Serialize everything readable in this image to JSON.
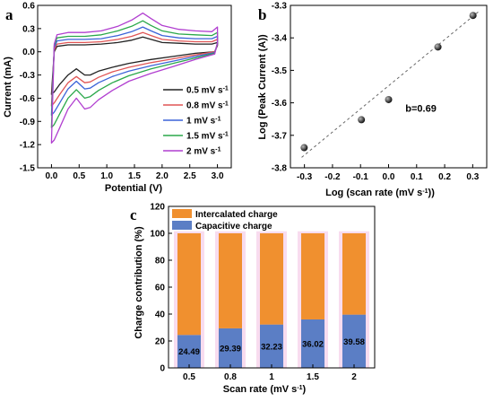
{
  "colors": {
    "cv_series": [
      "#222222",
      "#e05555",
      "#3b63d8",
      "#2aa84a",
      "#b13fd0"
    ],
    "capacitive": "#5b7ec5",
    "intercalated": "#f0902f",
    "highlight": "#f8dcef",
    "marker": "#111111",
    "fit_line": "#666666"
  },
  "chart_data": [
    {
      "panel_label": "a",
      "type": "line",
      "xlabel": "Potential (V)",
      "ylabel": "Current (mA)",
      "xlim": [
        -0.25,
        3.25
      ],
      "ylim": [
        -1.5,
        0.6
      ],
      "xticks": [
        "0.0",
        "0.5",
        "1.0",
        "1.5",
        "2.0",
        "2.5",
        "3.0"
      ],
      "yticks": [
        "-1.5",
        "-1.2",
        "-0.9",
        "-0.6",
        "-0.3",
        "0.0",
        "0.3",
        "0.6"
      ],
      "legend_position": "lower-right",
      "series": [
        {
          "name": "0.5 mV s",
          "unit_exp": "-1",
          "anodic": [
            [
              0.0,
              -0.55
            ],
            [
              0.05,
              0.0
            ],
            [
              0.1,
              0.07
            ],
            [
              0.3,
              0.09
            ],
            [
              0.6,
              0.09
            ],
            [
              0.9,
              0.1
            ],
            [
              1.2,
              0.12
            ],
            [
              1.45,
              0.15
            ],
            [
              1.65,
              0.19
            ],
            [
              1.8,
              0.16
            ],
            [
              2.0,
              0.12
            ],
            [
              2.3,
              0.11
            ],
            [
              2.6,
              0.1
            ],
            [
              2.9,
              0.1
            ],
            [
              3.0,
              0.12
            ]
          ],
          "cathodic": [
            [
              3.0,
              0.08
            ],
            [
              2.95,
              0.0
            ],
            [
              2.6,
              -0.02
            ],
            [
              2.2,
              -0.06
            ],
            [
              1.8,
              -0.1
            ],
            [
              1.4,
              -0.15
            ],
            [
              1.1,
              -0.2
            ],
            [
              0.85,
              -0.25
            ],
            [
              0.7,
              -0.3
            ],
            [
              0.6,
              -0.3
            ],
            [
              0.45,
              -0.22
            ],
            [
              0.3,
              -0.3
            ],
            [
              0.15,
              -0.42
            ],
            [
              0.05,
              -0.52
            ],
            [
              0.0,
              -0.55
            ]
          ]
        },
        {
          "name": "0.8 mV s",
          "unit_exp": "-1",
          "anodic": [
            [
              0.0,
              -0.7
            ],
            [
              0.05,
              0.02
            ],
            [
              0.1,
              0.1
            ],
            [
              0.3,
              0.12
            ],
            [
              0.6,
              0.12
            ],
            [
              0.9,
              0.13
            ],
            [
              1.2,
              0.16
            ],
            [
              1.45,
              0.2
            ],
            [
              1.65,
              0.25
            ],
            [
              1.8,
              0.21
            ],
            [
              2.0,
              0.16
            ],
            [
              2.3,
              0.14
            ],
            [
              2.6,
              0.13
            ],
            [
              2.9,
              0.13
            ],
            [
              3.0,
              0.16
            ]
          ],
          "cathodic": [
            [
              3.0,
              0.09
            ],
            [
              2.95,
              0.0
            ],
            [
              2.6,
              -0.04
            ],
            [
              2.2,
              -0.09
            ],
            [
              1.8,
              -0.14
            ],
            [
              1.4,
              -0.2
            ],
            [
              1.1,
              -0.26
            ],
            [
              0.85,
              -0.33
            ],
            [
              0.7,
              -0.39
            ],
            [
              0.6,
              -0.4
            ],
            [
              0.45,
              -0.32
            ],
            [
              0.3,
              -0.4
            ],
            [
              0.15,
              -0.55
            ],
            [
              0.05,
              -0.66
            ],
            [
              0.0,
              -0.7
            ]
          ]
        },
        {
          "name": "1 mV s",
          "unit_exp": "-1",
          "anodic": [
            [
              0.0,
              -0.82
            ],
            [
              0.05,
              0.05
            ],
            [
              0.1,
              0.14
            ],
            [
              0.3,
              0.16
            ],
            [
              0.6,
              0.16
            ],
            [
              0.9,
              0.17
            ],
            [
              1.2,
              0.21
            ],
            [
              1.45,
              0.26
            ],
            [
              1.65,
              0.32
            ],
            [
              1.8,
              0.27
            ],
            [
              2.0,
              0.21
            ],
            [
              2.3,
              0.18
            ],
            [
              2.6,
              0.17
            ],
            [
              2.9,
              0.17
            ],
            [
              3.0,
              0.2
            ]
          ],
          "cathodic": [
            [
              3.0,
              0.1
            ],
            [
              2.95,
              -0.01
            ],
            [
              2.6,
              -0.06
            ],
            [
              2.2,
              -0.12
            ],
            [
              1.8,
              -0.18
            ],
            [
              1.4,
              -0.25
            ],
            [
              1.1,
              -0.32
            ],
            [
              0.85,
              -0.4
            ],
            [
              0.7,
              -0.47
            ],
            [
              0.6,
              -0.48
            ],
            [
              0.45,
              -0.38
            ],
            [
              0.3,
              -0.48
            ],
            [
              0.15,
              -0.66
            ],
            [
              0.05,
              -0.78
            ],
            [
              0.0,
              -0.82
            ]
          ]
        },
        {
          "name": "1.5 mV s",
          "unit_exp": "-1",
          "anodic": [
            [
              0.0,
              -0.98
            ],
            [
              0.05,
              0.08
            ],
            [
              0.1,
              0.18
            ],
            [
              0.3,
              0.2
            ],
            [
              0.6,
              0.2
            ],
            [
              0.9,
              0.22
            ],
            [
              1.2,
              0.27
            ],
            [
              1.45,
              0.33
            ],
            [
              1.65,
              0.4
            ],
            [
              1.8,
              0.34
            ],
            [
              2.0,
              0.27
            ],
            [
              2.3,
              0.23
            ],
            [
              2.6,
              0.22
            ],
            [
              2.9,
              0.21
            ],
            [
              3.0,
              0.25
            ]
          ],
          "cathodic": [
            [
              3.0,
              0.11
            ],
            [
              2.95,
              -0.02
            ],
            [
              2.6,
              -0.08
            ],
            [
              2.2,
              -0.15
            ],
            [
              1.8,
              -0.22
            ],
            [
              1.4,
              -0.31
            ],
            [
              1.1,
              -0.4
            ],
            [
              0.85,
              -0.5
            ],
            [
              0.7,
              -0.58
            ],
            [
              0.6,
              -0.6
            ],
            [
              0.45,
              -0.49
            ],
            [
              0.3,
              -0.6
            ],
            [
              0.15,
              -0.8
            ],
            [
              0.05,
              -0.94
            ],
            [
              0.0,
              -0.98
            ]
          ]
        },
        {
          "name": "2 mV s",
          "unit_exp": "-1",
          "anodic": [
            [
              0.0,
              -1.18
            ],
            [
              0.05,
              0.1
            ],
            [
              0.1,
              0.22
            ],
            [
              0.3,
              0.25
            ],
            [
              0.6,
              0.25
            ],
            [
              0.9,
              0.27
            ],
            [
              1.2,
              0.33
            ],
            [
              1.45,
              0.41
            ],
            [
              1.65,
              0.5
            ],
            [
              1.8,
              0.43
            ],
            [
              2.0,
              0.34
            ],
            [
              2.3,
              0.29
            ],
            [
              2.6,
              0.27
            ],
            [
              2.9,
              0.26
            ],
            [
              3.0,
              0.32
            ]
          ],
          "cathodic": [
            [
              3.0,
              0.12
            ],
            [
              2.95,
              -0.03
            ],
            [
              2.6,
              -0.1
            ],
            [
              2.2,
              -0.19
            ],
            [
              1.8,
              -0.28
            ],
            [
              1.4,
              -0.38
            ],
            [
              1.1,
              -0.5
            ],
            [
              0.85,
              -0.62
            ],
            [
              0.7,
              -0.72
            ],
            [
              0.6,
              -0.74
            ],
            [
              0.45,
              -0.6
            ],
            [
              0.3,
              -0.74
            ],
            [
              0.15,
              -0.98
            ],
            [
              0.05,
              -1.14
            ],
            [
              0.0,
              -1.18
            ]
          ]
        }
      ]
    },
    {
      "panel_label": "b",
      "type": "scatter",
      "xlabel": "Log (scan rate (mV s",
      "xlabel_exp": "-1",
      "xlabel_end": "))",
      "ylabel": "Log (Peak Current (A))",
      "xlim": [
        -0.35,
        0.35
      ],
      "ylim": [
        -3.8,
        -3.3
      ],
      "xticks": [
        "-0.3",
        "-0.2",
        "-0.1",
        "0.0",
        "0.1",
        "0.2",
        "0.3"
      ],
      "yticks": [
        "-3.8",
        "-3.7",
        "-3.6",
        "-3.5",
        "-3.4",
        "-3.3"
      ],
      "x": [
        -0.301,
        -0.097,
        0.0,
        0.176,
        0.301
      ],
      "y": [
        -3.738,
        -3.652,
        -3.59,
        -3.428,
        -3.331
      ],
      "fit": {
        "x": [
          -0.31,
          0.32
        ],
        "y": [
          -3.768,
          -3.32
        ]
      },
      "annotation": "b=0.69"
    },
    {
      "panel_label": "c",
      "type": "bar",
      "xlabel": "Scan rate (mV s",
      "xlabel_exp": "-1",
      "xlabel_end": ")",
      "ylabel": "Charge contribution (%)",
      "ylim": [
        0,
        120
      ],
      "yticks": [
        "0",
        "20",
        "40",
        "60",
        "80",
        "100",
        "120"
      ],
      "categories": [
        "0.5",
        "0.8",
        "1",
        "1.5",
        "2"
      ],
      "series": [
        {
          "name": "Capacitive charge",
          "values": [
            24.49,
            29.39,
            32.23,
            36.02,
            39.58
          ]
        },
        {
          "name": "Intercalated charge",
          "values": [
            75.51,
            70.61,
            67.77,
            63.98,
            60.42
          ]
        }
      ],
      "stacked": true,
      "legend_position": "top-left",
      "value_labels": [
        "24.49",
        "29.39",
        "32.23",
        "36.02",
        "39.58"
      ]
    }
  ]
}
